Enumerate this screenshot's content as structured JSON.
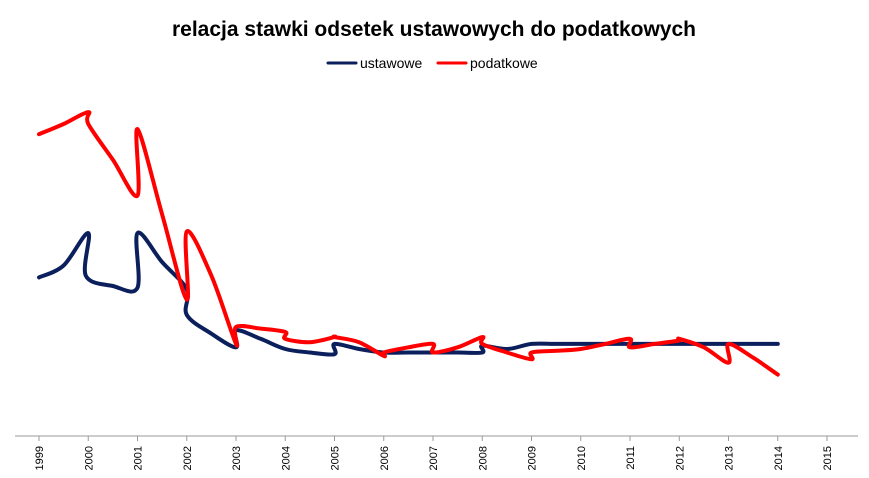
{
  "chart_data": {
    "type": "line",
    "title": "relacja stawki odsetek ustawowych do podatkowych",
    "legend_position": "top-center",
    "grid": false,
    "x_axis_labels": [
      "1999",
      "2000",
      "2001",
      "2002",
      "2003",
      "2004",
      "2005",
      "2006",
      "2007",
      "2008",
      "2009",
      "2010",
      "2011",
      "2012",
      "2013",
      "2014",
      "2015"
    ],
    "xlim": [
      1999,
      2015
    ],
    "ylim": [
      0,
      1
    ],
    "series": [
      {
        "name": "ustawowe",
        "color": "#0b1f5c",
        "points": [
          [
            1999.0,
            0.465
          ],
          [
            1999.5,
            0.5
          ],
          [
            2000.0,
            0.595
          ],
          [
            1999.95,
            0.47
          ],
          [
            2000.5,
            0.44
          ],
          [
            2001.0,
            0.435
          ],
          [
            2001.0,
            0.595
          ],
          [
            2001.5,
            0.51
          ],
          [
            2002.0,
            0.43
          ],
          [
            2002.0,
            0.355
          ],
          [
            2002.5,
            0.3
          ],
          [
            2003.0,
            0.26
          ],
          [
            2003.0,
            0.31
          ],
          [
            2003.5,
            0.285
          ],
          [
            2004.0,
            0.255
          ],
          [
            2004.5,
            0.245
          ],
          [
            2005.0,
            0.24
          ],
          [
            2005.0,
            0.27
          ],
          [
            2005.5,
            0.255
          ],
          [
            2006.0,
            0.245
          ],
          [
            2006.5,
            0.245
          ],
          [
            2007.0,
            0.245
          ],
          [
            2007.5,
            0.245
          ],
          [
            2008.0,
            0.245
          ],
          [
            2008.0,
            0.265
          ],
          [
            2008.5,
            0.255
          ],
          [
            2009.0,
            0.27
          ],
          [
            2009.5,
            0.27
          ],
          [
            2010.0,
            0.27
          ],
          [
            2011.0,
            0.27
          ],
          [
            2012.0,
            0.27
          ],
          [
            2013.0,
            0.27
          ],
          [
            2014.0,
            0.27
          ]
        ]
      },
      {
        "name": "podatkowe",
        "color": "#ff0000",
        "points": [
          [
            1999.0,
            0.885
          ],
          [
            1999.5,
            0.915
          ],
          [
            2000.0,
            0.95
          ],
          [
            2000.0,
            0.915
          ],
          [
            2000.5,
            0.81
          ],
          [
            2001.0,
            0.705
          ],
          [
            2001.0,
            0.9
          ],
          [
            2001.5,
            0.65
          ],
          [
            2002.0,
            0.4
          ],
          [
            2002.0,
            0.6
          ],
          [
            2002.5,
            0.47
          ],
          [
            2003.0,
            0.27
          ],
          [
            2003.0,
            0.32
          ],
          [
            2003.5,
            0.315
          ],
          [
            2004.0,
            0.305
          ],
          [
            2004.0,
            0.285
          ],
          [
            2004.5,
            0.275
          ],
          [
            2005.0,
            0.29
          ],
          [
            2005.0,
            0.29
          ],
          [
            2005.5,
            0.275
          ],
          [
            2006.0,
            0.235
          ],
          [
            2006.0,
            0.245
          ],
          [
            2006.5,
            0.26
          ],
          [
            2007.0,
            0.27
          ],
          [
            2007.0,
            0.245
          ],
          [
            2007.5,
            0.26
          ],
          [
            2008.0,
            0.29
          ],
          [
            2008.0,
            0.27
          ],
          [
            2008.5,
            0.245
          ],
          [
            2009.0,
            0.225
          ],
          [
            2009.0,
            0.245
          ],
          [
            2009.5,
            0.25
          ],
          [
            2010.0,
            0.255
          ],
          [
            2010.5,
            0.27
          ],
          [
            2011.0,
            0.285
          ],
          [
            2011.0,
            0.26
          ],
          [
            2011.5,
            0.27
          ],
          [
            2012.0,
            0.28
          ],
          [
            2012.0,
            0.285
          ],
          [
            2012.5,
            0.26
          ],
          [
            2013.0,
            0.215
          ],
          [
            2013.0,
            0.27
          ],
          [
            2013.5,
            0.23
          ],
          [
            2014.0,
            0.18
          ]
        ]
      }
    ]
  }
}
